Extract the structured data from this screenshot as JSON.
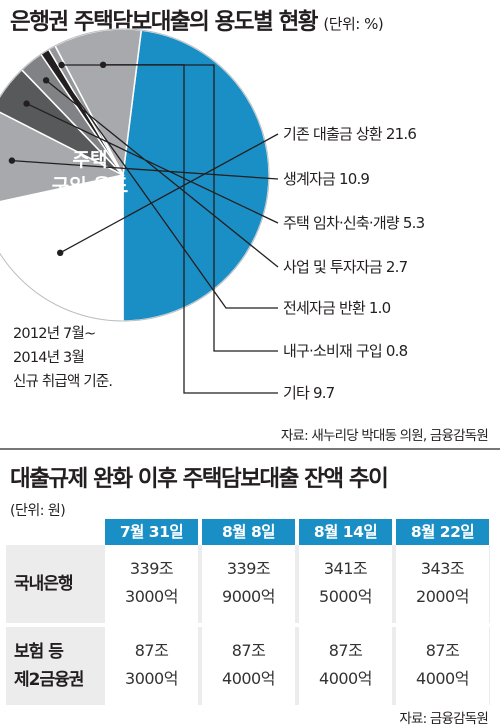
{
  "title1": {
    "main": "은행권 주택담보대출의 용도별 현황",
    "unit": "(단위: %)"
  },
  "chart_data": [
    {
      "type": "pie",
      "title": "은행권 주택담보대출의 용도별 현황",
      "unit": "%",
      "slices": [
        {
          "label": "주택 구입 용도",
          "value": 48.0,
          "color": "#1a8fc6"
        },
        {
          "label": "기존 대출금 상환",
          "value": 21.6,
          "color": "#ffffff"
        },
        {
          "label": "생계자금",
          "value": 10.9,
          "color": "#a7a9ac"
        },
        {
          "label": "주택 임차·신축·개량",
          "value": 5.3,
          "color": "#58595b"
        },
        {
          "label": "사업 및 투자자금",
          "value": 2.7,
          "color": "#808285"
        },
        {
          "label": "전세자금 반환",
          "value": 1.0,
          "color": "#231f20"
        },
        {
          "label": "내구·소비재 구입",
          "value": 0.8,
          "color": "#939598"
        },
        {
          "label": "기타",
          "value": 9.7,
          "color": "#a7a9ac"
        }
      ]
    },
    {
      "type": "table",
      "title": "대출규제 완화 이후 주택담보대출 잔액 추이",
      "unit": "원",
      "columns": [
        "7월 31일",
        "8월 8일",
        "8월 14일",
        "8월 22일"
      ],
      "rows": [
        {
          "label": [
            "국내은행"
          ],
          "values": [
            [
              "339조",
              "3000억"
            ],
            [
              "339조",
              "9000억"
            ],
            [
              "341조",
              "5000억"
            ],
            [
              "343조",
              "2000억"
            ]
          ]
        },
        {
          "label": [
            "보험 등",
            "제2금융권"
          ],
          "values": [
            [
              "87조",
              "3000억"
            ],
            [
              "87조",
              "4000억"
            ],
            [
              "87조",
              "4000억"
            ],
            [
              "87조",
              "4000억"
            ]
          ]
        }
      ]
    }
  ],
  "pie_labels": {
    "main_line1": "주택",
    "main_line2": "구입 용도",
    "main_value": "48.0",
    "items": [
      "기존 대출금 상환 21.6",
      "생계자금 10.9",
      "주택 임차·신축·개량 5.3",
      "사업 및 투자자금 2.7",
      "전세자금 반환 1.0",
      "내구·소비재 구입 0.8",
      "기타 9.7"
    ]
  },
  "note": {
    "line1": "2012년 7월~",
    "line2": "2014년 3월",
    "line3": "신규 취급액 기준."
  },
  "source1": "자료: 새누리당 박대동 의원, 금융감독원",
  "title2": "대출규제 완화 이후 주택담보대출 잔액 추이",
  "unit2": "(단위: 원)",
  "source2": "자료: 금융감독원",
  "colors": {
    "accent": "#1a8fc6",
    "row_bg": "#ececec",
    "divider": "#777777"
  }
}
